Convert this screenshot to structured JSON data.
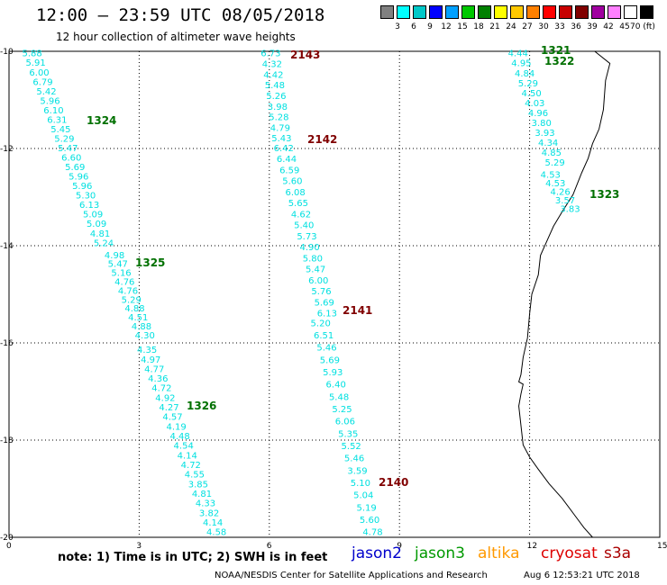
{
  "header": {
    "title": "12:00 — 23:59 UTC 08/05/2018",
    "subtitle": "12 hour collection of altimeter wave heights"
  },
  "color_scale": {
    "labels": [
      "3",
      "6",
      "9",
      "12",
      "15",
      "18",
      "21",
      "24",
      "27",
      "30",
      "33",
      "36",
      "39",
      "42",
      "45",
      "70 (ft)"
    ],
    "colors": [
      "#808080",
      "#00ffff",
      "#00c8c8",
      "#0000ff",
      "#00a0ff",
      "#00c800",
      "#008000",
      "#ffff00",
      "#ffc800",
      "#ff8000",
      "#ff0000",
      "#c80000",
      "#800000",
      "#a000a0",
      "#ff80ff",
      "#ffffff",
      "#000000"
    ]
  },
  "axes": {
    "x_ticks": [
      "0",
      "3",
      "6",
      "9",
      "12",
      "15"
    ],
    "y_ticks": [
      "-10",
      "-12",
      "-14",
      "-16",
      "-18",
      "-20"
    ],
    "x_range": [
      0,
      15
    ],
    "y_range": [
      -10,
      -20
    ]
  },
  "tracks": [
    {
      "id": "1324",
      "pass_color": "#007000",
      "label_lat": -11.35,
      "start": [
        0.55,
        -10.05
      ],
      "end": [
        2.2,
        -13.95
      ],
      "values": [
        "5.88",
        "5.91",
        "6.00",
        "6.79",
        "5.42",
        "5.96",
        "6.10",
        "6.31",
        "5.45",
        "5.29",
        "5.47",
        "6.60",
        "5.69",
        "5.96",
        "5.96",
        "5.30",
        "6.13",
        "5.09",
        "5.09",
        "4.81",
        "5.24"
      ]
    },
    {
      "id": "1325",
      "pass_color": "#007000",
      "label_lat": -14.4,
      "start": [
        2.45,
        -14.2
      ],
      "end": [
        3.15,
        -15.85
      ],
      "values": [
        "4.98",
        "5.47",
        "5.16",
        "4.76",
        "4.76",
        "5.29",
        "4.88",
        "4.51",
        "4.88",
        "4.30"
      ]
    },
    {
      "id": "1326",
      "pass_color": "#007000",
      "label_lat": -17.35,
      "start": [
        3.2,
        -16.15
      ],
      "end": [
        4.8,
        -19.9
      ],
      "values": [
        "4.35",
        "4.97",
        "4.77",
        "4.36",
        "4.72",
        "4.92",
        "4.27",
        "4.57",
        "4.19",
        "4.48",
        "4.54",
        "4.14",
        "4.72",
        "4.55",
        "3.85",
        "4.81",
        "4.33",
        "3.82",
        "4.14",
        "4.58"
      ]
    },
    {
      "id": "2143",
      "pass_color": "#800000",
      "label_lat": -10.05,
      "start": [
        6.05,
        -10.05
      ],
      "end": [
        6.3,
        -11.8
      ],
      "values": [
        "6.73",
        "4.32",
        "4.42",
        "5.48",
        "5.26",
        "3.98",
        "5.28",
        "4.79",
        "5.43"
      ]
    },
    {
      "id": "2142",
      "pass_color": "#800000",
      "label_lat": -11.85,
      "start": [
        6.35,
        -12.0
      ],
      "end": [
        7.35,
        -15.4
      ],
      "values": [
        "6.42",
        "6.44",
        "6.59",
        "5.60",
        "6.08",
        "5.65",
        "4.62",
        "5.40",
        "5.73",
        "4.90",
        "5.80",
        "5.47",
        "6.00",
        "5.76",
        "5.69",
        "6.13"
      ]
    },
    {
      "id": "2141",
      "pass_color": "#800000",
      "label_lat": -15.25,
      "start": [
        7.2,
        -15.6
      ],
      "end": [
        8.4,
        -19.9
      ],
      "values": [
        "5.20",
        "6.51",
        "5.46",
        "5.69",
        "5.93",
        "6.40",
        "5.48",
        "5.25",
        "6.06",
        "5.35",
        "5.52",
        "5.46",
        "3.59",
        "5.10",
        "5.04",
        "5.19",
        "5.60",
        "4.78"
      ]
    },
    {
      "id": "2140",
      "pass_color": "#800000",
      "label_lat": -18.9,
      "start": [
        0,
        0
      ],
      "end": [
        0,
        0
      ],
      "values": []
    },
    {
      "id": "1321",
      "pass_color": "#007000",
      "label_lat": -10.0,
      "start": [
        11.75,
        -10.05
      ],
      "end": [
        12.6,
        -12.3
      ],
      "values": [
        "4.44",
        "4.95",
        "4.84",
        "5.29",
        "4.50",
        "4.03",
        "4.96",
        "3.80",
        "3.93",
        "4.34",
        "4.85",
        "5.29"
      ]
    },
    {
      "id": "1322",
      "pass_color": "#007000",
      "label_lat": -10.15,
      "start": [
        0,
        0
      ],
      "end": [
        0,
        0
      ],
      "values": []
    },
    {
      "id": "1323",
      "pass_color": "#007000",
      "label_lat": -12.85,
      "start": [
        12.5,
        -12.55
      ],
      "end": [
        12.95,
        -13.25
      ],
      "values": [
        "4.53",
        "4.53",
        "4.26",
        "3.57",
        "3.83"
      ]
    }
  ],
  "footer": {
    "note": "note:  1) Time is in UTC;  2) SWH is in feet",
    "missions": [
      {
        "name": "jason2",
        "color": "#0000cc"
      },
      {
        "name": "jason3",
        "color": "#009900"
      },
      {
        "name": "altika",
        "color": "#ff9900"
      },
      {
        "name": "cryosat",
        "color": "#dd0000"
      },
      {
        "name": "s3a",
        "color": "#aa0000"
      }
    ],
    "credit": "NOAA/NESDIS Center for Satellite Applications and Research",
    "timestamp": "Aug  6 12:53:21 UTC 2018"
  }
}
